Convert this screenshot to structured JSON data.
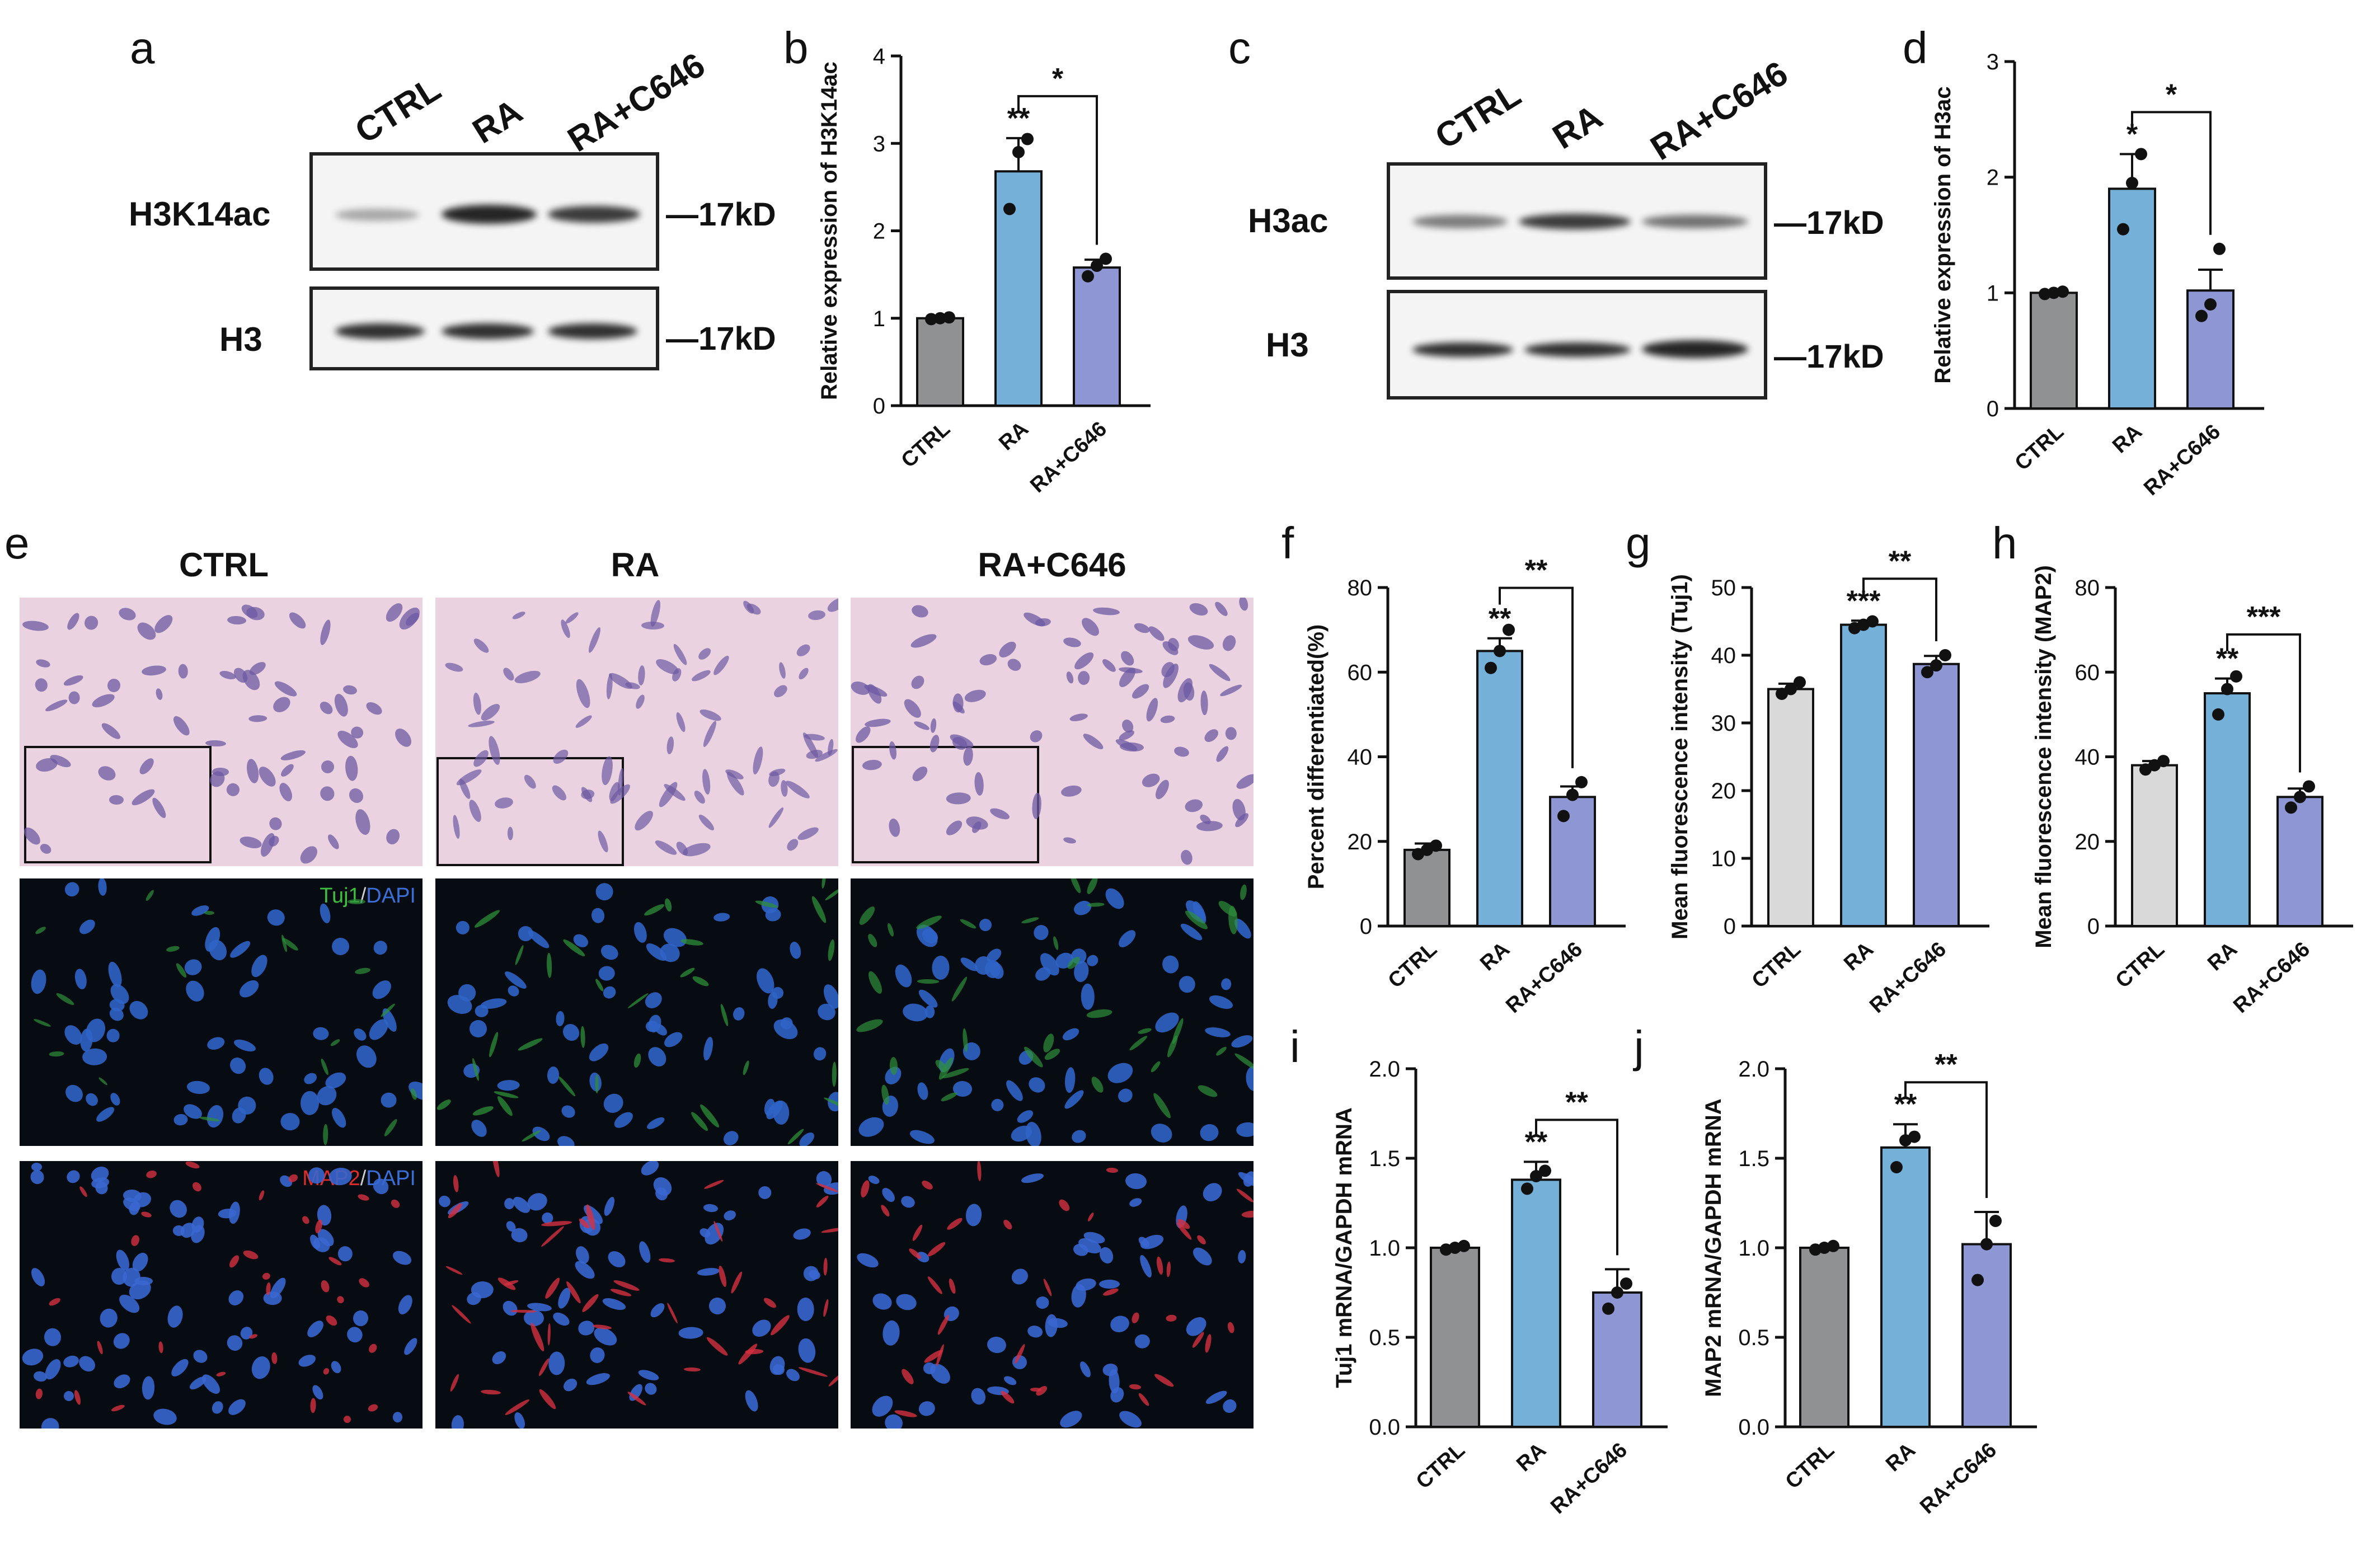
{
  "panels": {
    "a": "a",
    "b": "b",
    "c": "c",
    "d": "d",
    "e": "e",
    "f": "f",
    "g": "g",
    "h": "h",
    "i": "i",
    "j": "j"
  },
  "blot_a": {
    "lanes": [
      "CTRL",
      "RA",
      "RA+C646"
    ],
    "rows": [
      {
        "label": "H3K14ac",
        "kd": "—17kD"
      },
      {
        "label": "H3",
        "kd": "—17kD"
      }
    ]
  },
  "blot_c": {
    "lanes": [
      "CTRL",
      "RA",
      "RA+C646"
    ],
    "rows": [
      {
        "label": "H3ac",
        "kd": "—17kD"
      },
      {
        "label": "H3",
        "kd": "—17kD"
      }
    ]
  },
  "micro": {
    "columns": [
      "CTRL",
      "RA",
      "RA+C646"
    ],
    "stain_tuj1": {
      "a": "Tuj1",
      "sep": "/",
      "b": "DAPI"
    },
    "stain_map2": {
      "a": "MAP2",
      "sep": "/",
      "b": "DAPI"
    }
  },
  "colors": {
    "ctrl": "#8f9193",
    "ctrl_light": "#d9d9d9",
    "ra": "#74b0d8",
    "c646": "#8e96d3"
  },
  "chart_data": [
    {
      "id": "b",
      "type": "bar",
      "categories": [
        "CTRL",
        "RA",
        "RA+C646"
      ],
      "values": [
        1.0,
        2.68,
        1.58
      ],
      "errors": [
        0.02,
        0.38,
        0.09
      ],
      "points": [
        [
          0.99,
          1.0,
          1.01
        ],
        [
          2.25,
          2.9,
          3.05
        ],
        [
          1.48,
          1.6,
          1.68
        ]
      ],
      "ylabel": "Relative expression of H3K14ac",
      "ylim": [
        0,
        4
      ],
      "yticks": [
        0,
        1,
        2,
        3,
        4
      ],
      "tick_labels": [
        "0",
        "1",
        "2",
        "3",
        "4"
      ],
      "colors": [
        "#8f9193",
        "#74b0d8",
        "#8e96d3"
      ],
      "star_above": [
        "",
        "**",
        ""
      ],
      "bracket": {
        "from": 1,
        "to": 2,
        "label": "*"
      }
    },
    {
      "id": "d",
      "type": "bar",
      "categories": [
        "CTRL",
        "RA",
        "RA+C646"
      ],
      "values": [
        1.0,
        1.9,
        1.02
      ],
      "errors": [
        0.02,
        0.3,
        0.18
      ],
      "points": [
        [
          0.99,
          1.0,
          1.01
        ],
        [
          1.55,
          1.95,
          2.2
        ],
        [
          0.8,
          0.9,
          1.38
        ]
      ],
      "ylabel": "Relative expression of H3ac",
      "ylim": [
        0,
        3
      ],
      "yticks": [
        0,
        1,
        2,
        3
      ],
      "tick_labels": [
        "0",
        "1",
        "2",
        "3"
      ],
      "colors": [
        "#8f9193",
        "#74b0d8",
        "#8e96d3"
      ],
      "star_above": [
        "",
        "*",
        ""
      ],
      "bracket": {
        "from": 1,
        "to": 2,
        "label": "*"
      }
    },
    {
      "id": "f",
      "type": "bar",
      "categories": [
        "CTRL",
        "RA",
        "RA+C646"
      ],
      "values": [
        18,
        65,
        30.5
      ],
      "errors": [
        1.5,
        3,
        2.5
      ],
      "points": [
        [
          17,
          18,
          19
        ],
        [
          61,
          65,
          70
        ],
        [
          26,
          31,
          34
        ]
      ],
      "ylabel": "Percent differentiated(%)",
      "ylim": [
        0,
        80
      ],
      "yticks": [
        0,
        20,
        40,
        60,
        80
      ],
      "tick_labels": [
        "0",
        "20",
        "40",
        "60",
        "80"
      ],
      "colors": [
        "#8f9193",
        "#74b0d8",
        "#8e96d3"
      ],
      "star_above": [
        "",
        "**",
        ""
      ],
      "bracket": {
        "from": 1,
        "to": 2,
        "label": "**"
      }
    },
    {
      "id": "g",
      "type": "bar",
      "categories": [
        "CTRL",
        "RA",
        "RA+C646"
      ],
      "values": [
        35,
        44.5,
        38.7
      ],
      "errors": [
        0.8,
        0.6,
        1.2
      ],
      "points": [
        [
          34.3,
          35,
          36
        ],
        [
          44,
          44.5,
          45
        ],
        [
          37.5,
          38.5,
          40
        ]
      ],
      "ylabel": "Mean fluorescence intensity (Tuj1)",
      "ylim": [
        0,
        50
      ],
      "yticks": [
        0,
        10,
        20,
        30,
        40,
        50
      ],
      "tick_labels": [
        "0",
        "10",
        "20",
        "30",
        "40",
        "50"
      ],
      "colors": [
        "#d9d9d9",
        "#74b0d8",
        "#8e96d3"
      ],
      "star_above": [
        "",
        "***",
        ""
      ],
      "bracket": {
        "from": 1,
        "to": 2,
        "label": "**"
      }
    },
    {
      "id": "h",
      "type": "bar",
      "categories": [
        "CTRL",
        "RA",
        "RA+C646"
      ],
      "values": [
        38,
        55,
        30.5
      ],
      "errors": [
        1,
        3.5,
        2
      ],
      "points": [
        [
          37,
          38,
          39
        ],
        [
          50,
          56,
          59
        ],
        [
          28,
          30.5,
          33
        ]
      ],
      "ylabel": "Mean fluorescence intensity (MAP2)",
      "ylim": [
        0,
        80
      ],
      "yticks": [
        0,
        20,
        40,
        60,
        80
      ],
      "tick_labels": [
        "0",
        "20",
        "40",
        "60",
        "80"
      ],
      "colors": [
        "#d9d9d9",
        "#74b0d8",
        "#8e96d3"
      ],
      "star_above": [
        "",
        "**",
        ""
      ],
      "bracket": {
        "from": 1,
        "to": 2,
        "label": "***"
      }
    },
    {
      "id": "i",
      "type": "bar",
      "categories": [
        "CTRL",
        "RA",
        "RA+C646"
      ],
      "values": [
        1.0,
        1.38,
        0.75
      ],
      "errors": [
        0.01,
        0.1,
        0.13
      ],
      "points": [
        [
          0.99,
          1.0,
          1.01
        ],
        [
          1.33,
          1.4,
          1.43
        ],
        [
          0.66,
          0.75,
          0.8
        ]
      ],
      "ylabel": "Tuj1 mRNA/GAPDH mRNA",
      "ylim": [
        0,
        2.0
      ],
      "yticks": [
        0,
        0.5,
        1.0,
        1.5,
        2.0
      ],
      "tick_labels": [
        "0.0",
        "0.5",
        "1.0",
        "1.5",
        "2.0"
      ],
      "colors": [
        "#8f9193",
        "#74b0d8",
        "#8e96d3"
      ],
      "star_above": [
        "",
        "**",
        ""
      ],
      "bracket": {
        "from": 1,
        "to": 2,
        "label": "**"
      }
    },
    {
      "id": "j",
      "type": "bar",
      "categories": [
        "CTRL",
        "RA",
        "RA+C646"
      ],
      "values": [
        1.0,
        1.56,
        1.02
      ],
      "errors": [
        0.01,
        0.13,
        0.18
      ],
      "points": [
        [
          0.99,
          1.0,
          1.01
        ],
        [
          1.45,
          1.6,
          1.62
        ],
        [
          0.82,
          1.02,
          1.15
        ]
      ],
      "ylabel": "MAP2 mRNA/GAPDH mRNA",
      "ylim": [
        0,
        2.0
      ],
      "yticks": [
        0,
        0.5,
        1.0,
        1.5,
        2.0
      ],
      "tick_labels": [
        "0.0",
        "0.5",
        "1.0",
        "1.5",
        "2.0"
      ],
      "colors": [
        "#8f9193",
        "#74b0d8",
        "#8e96d3"
      ],
      "star_above": [
        "",
        "**",
        ""
      ],
      "bracket": {
        "from": 1,
        "to": 2,
        "label": "**"
      }
    }
  ]
}
